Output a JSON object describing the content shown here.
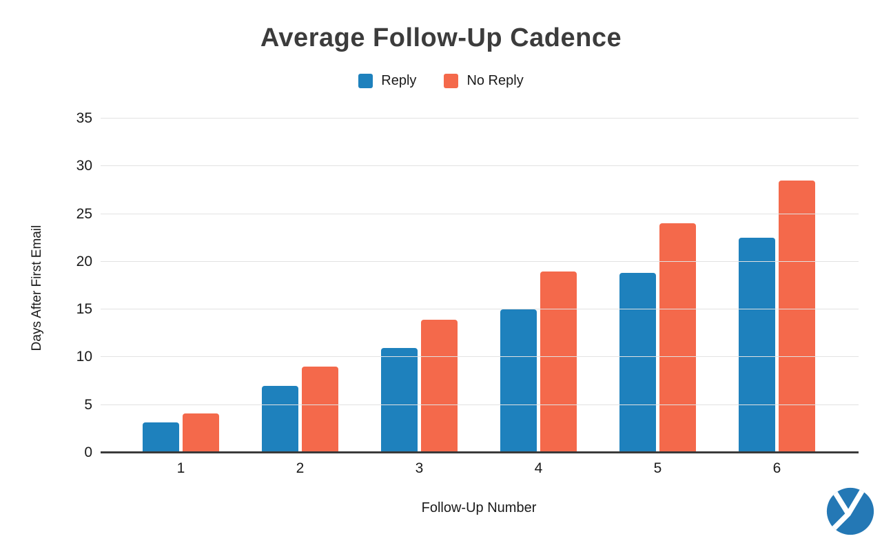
{
  "chart_data": {
    "type": "bar",
    "title": "Average Follow-Up Cadence",
    "xlabel": "Follow-Up Number",
    "ylabel": "Days After First Email",
    "categories": [
      "1",
      "2",
      "3",
      "4",
      "5",
      "6"
    ],
    "series": [
      {
        "name": "Reply",
        "color": "#1E81BD",
        "values": [
          3.2,
          7,
          11,
          15,
          18.8,
          22.5
        ]
      },
      {
        "name": "No Reply",
        "color": "#F4694B",
        "values": [
          4.1,
          9,
          13.9,
          19,
          24,
          28.5
        ]
      }
    ],
    "ylim": [
      0,
      35
    ],
    "yticks": [
      0,
      5,
      10,
      15,
      20,
      25,
      30,
      35
    ],
    "grid": true,
    "legend_position": "top"
  },
  "logo": {
    "icon": "yesware-y-logo-icon",
    "color": "#2478B5"
  }
}
